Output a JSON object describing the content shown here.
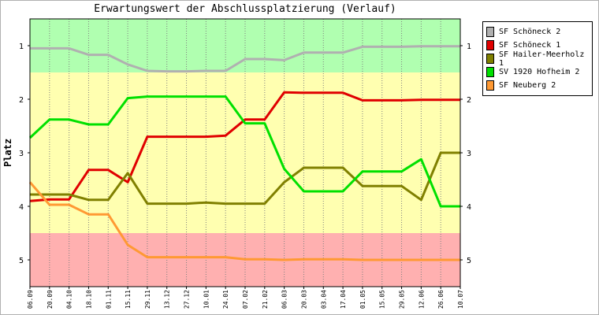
{
  "chart_data": {
    "type": "line",
    "title": "Erwartungswert der Abschlussplatzierung (Verlauf)",
    "ylabel": "Platz",
    "ylim": [
      0.5,
      5.5
    ],
    "y_inverted": true,
    "yticks": [
      1,
      2,
      3,
      4,
      5
    ],
    "categories": [
      "06.09",
      "20.09",
      "04.10",
      "18.10",
      "01.11",
      "15.11",
      "29.11",
      "13.12",
      "27.12",
      "10.01",
      "24.01",
      "07.02",
      "21.02",
      "06.03",
      "20.03",
      "03.04",
      "17.04",
      "01.05",
      "15.05",
      "29.05",
      "12.06",
      "26.06",
      "10.07"
    ],
    "bands": [
      {
        "from": 0.5,
        "to": 1.5,
        "color": "#b0ffb0"
      },
      {
        "from": 1.5,
        "to": 4.5,
        "color": "#ffffb0"
      },
      {
        "from": 4.5,
        "to": 5.5,
        "color": "#ffb0b0"
      }
    ],
    "series": [
      {
        "name": "SF Schöneck 2",
        "color": "#b0b0b0",
        "values": [
          1.05,
          1.05,
          1.05,
          1.17,
          1.17,
          1.35,
          1.47,
          1.48,
          1.48,
          1.47,
          1.47,
          1.25,
          1.25,
          1.27,
          1.13,
          1.13,
          1.13,
          1.02,
          1.02,
          1.02,
          1.01,
          1.01,
          1.01
        ]
      },
      {
        "name": "SF Schöneck 1",
        "color": "#e00000",
        "values": [
          3.9,
          3.87,
          3.87,
          3.32,
          3.32,
          3.55,
          2.7,
          2.7,
          2.7,
          2.7,
          2.68,
          2.38,
          2.38,
          1.87,
          1.88,
          1.88,
          1.88,
          2.02,
          2.02,
          2.02,
          2.01,
          2.01,
          2.01
        ]
      },
      {
        "name": "SF Hailer-Meerholz 1",
        "color": "#808000",
        "values": [
          3.78,
          3.78,
          3.78,
          3.88,
          3.88,
          3.38,
          3.95,
          3.95,
          3.95,
          3.93,
          3.95,
          3.95,
          3.95,
          3.55,
          3.28,
          3.28,
          3.28,
          3.62,
          3.62,
          3.62,
          3.88,
          3.0,
          3.0
        ]
      },
      {
        "name": "SV 1920 Hofheim 2",
        "color": "#00e000",
        "values": [
          2.72,
          2.38,
          2.38,
          2.47,
          2.47,
          1.98,
          1.95,
          1.95,
          1.95,
          1.95,
          1.95,
          2.45,
          2.45,
          3.3,
          3.72,
          3.72,
          3.72,
          3.35,
          3.35,
          3.35,
          3.12,
          4.0,
          4.0
        ]
      },
      {
        "name": "SF Neuberg 2",
        "color": "#ff9933",
        "values": [
          3.55,
          3.97,
          3.97,
          4.15,
          4.15,
          4.72,
          4.95,
          4.95,
          4.95,
          4.95,
          4.95,
          4.99,
          4.99,
          5.0,
          4.99,
          4.99,
          4.99,
          5.0,
          5.0,
          5.0,
          5.0,
          5.0,
          5.0
        ]
      }
    ],
    "legend_position": "right"
  }
}
